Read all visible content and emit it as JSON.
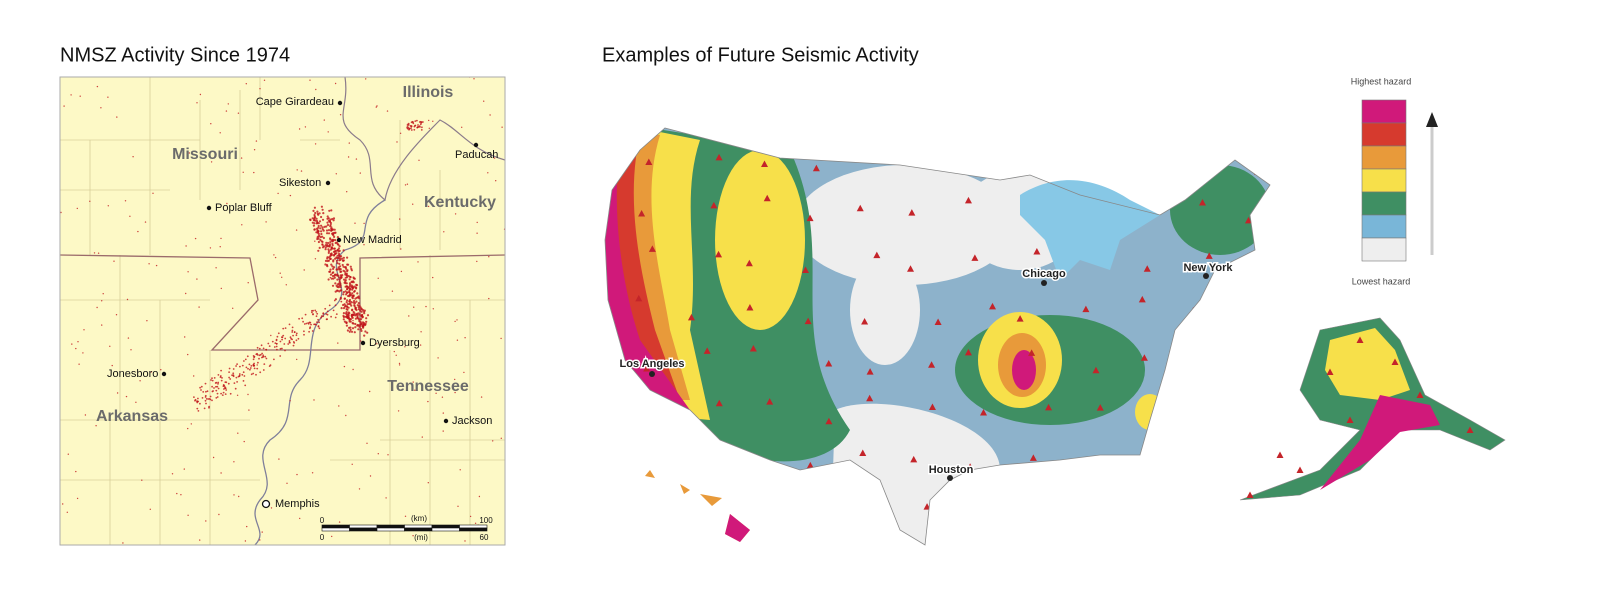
{
  "left_panel": {
    "title": "NMSZ Activity Since 1974",
    "states": [
      "Illinois",
      "Missouri",
      "Kentucky",
      "Tennessee",
      "Arkansas"
    ],
    "cities": [
      "Cape Girardeau",
      "Paducah",
      "Sikeston",
      "Poplar Bluff",
      "New Madrid",
      "Dyersburg",
      "Jonesboro",
      "Jackson",
      "Memphis"
    ],
    "scale": {
      "km": {
        "start": 0,
        "unit": "(km)",
        "end": 100
      },
      "mi": {
        "start": 0,
        "unit": "(mi)",
        "end": 60
      }
    }
  },
  "right_panel": {
    "title": "Examples of Future Seismic Activity",
    "cities": [
      "Chicago",
      "New York",
      "Los Angeles",
      "Houston"
    ],
    "legend": {
      "top": "Highest hazard",
      "bottom": "Lowest hazard",
      "colors": [
        "#d0197a",
        "#d63a2e",
        "#e89a3a",
        "#f7e04a",
        "#3f8f63",
        "#79b6d8",
        "#eeeeee"
      ]
    }
  }
}
